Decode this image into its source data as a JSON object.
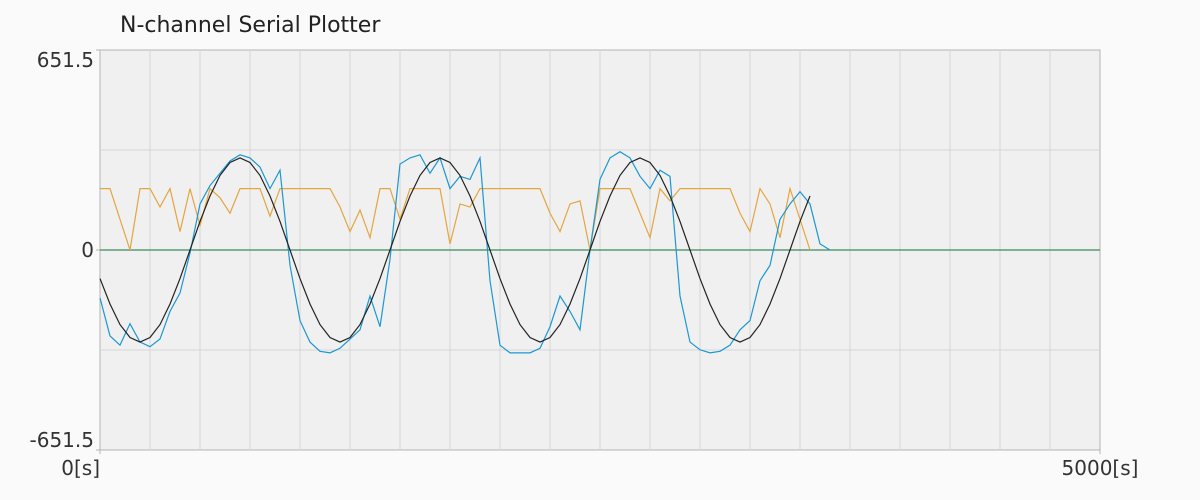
{
  "chart_data": {
    "type": "line",
    "title": "N-channel Serial Plotter",
    "xlim": [
      0,
      5000
    ],
    "ylim": [
      -651.5,
      651.5
    ],
    "xticks": [
      {
        "value": 0,
        "label": "0[s]"
      },
      {
        "value": 5000,
        "label": "5000[s]"
      }
    ],
    "yticks": [
      -651.5,
      0,
      651.5
    ],
    "xgrid": [
      250,
      500,
      750,
      1000,
      1250,
      1500,
      1750,
      2000,
      2250,
      2500,
      2750,
      3000,
      3250,
      3500,
      3750,
      4000,
      4250,
      4500,
      4750
    ],
    "ygrid": [
      -325.75,
      325.75
    ],
    "series": [
      {
        "color": "#3a8a5c",
        "x": [
          0,
          5000
        ],
        "values": [
          0,
          0
        ]
      },
      {
        "color": "#e4a540",
        "x": [
          0,
          50,
          100,
          150,
          200,
          250,
          300,
          350,
          400,
          450,
          500,
          550,
          600,
          650,
          700,
          750,
          800,
          850,
          900,
          950,
          1000,
          1050,
          1100,
          1150,
          1200,
          1250,
          1300,
          1350,
          1400,
          1450,
          1500,
          1550,
          1600,
          1650,
          1700,
          1750,
          1800,
          1850,
          1900,
          1950,
          2000,
          2050,
          2100,
          2150,
          2200,
          2250,
          2300,
          2350,
          2400,
          2450,
          2500,
          2550,
          2600,
          2650,
          2700,
          2750,
          2800,
          2850,
          2900,
          2950,
          3000,
          3050,
          3100,
          3150,
          3200,
          3250,
          3300,
          3350,
          3400,
          3450,
          3500,
          3550
        ],
        "values": [
          200,
          200,
          100,
          0,
          200,
          200,
          140,
          200,
          60,
          200,
          80,
          200,
          170,
          120,
          200,
          200,
          200,
          110,
          200,
          200,
          200,
          200,
          200,
          200,
          140,
          60,
          130,
          40,
          200,
          200,
          100,
          200,
          200,
          200,
          200,
          20,
          150,
          140,
          200,
          200,
          200,
          200,
          200,
          200,
          200,
          120,
          60,
          150,
          160,
          0,
          200,
          200,
          200,
          200,
          120,
          40,
          200,
          160,
          200,
          200,
          200,
          200,
          200,
          200,
          120,
          60,
          200,
          150,
          40,
          200,
          100,
          0
        ]
      },
      {
        "color": "#1a97d4",
        "x": [
          0,
          50,
          100,
          150,
          200,
          250,
          300,
          350,
          400,
          450,
          500,
          550,
          600,
          650,
          700,
          750,
          800,
          850,
          900,
          950,
          1000,
          1050,
          1100,
          1150,
          1200,
          1250,
          1300,
          1350,
          1400,
          1450,
          1500,
          1550,
          1600,
          1650,
          1700,
          1750,
          1800,
          1850,
          1900,
          1950,
          2000,
          2050,
          2100,
          2150,
          2200,
          2250,
          2300,
          2350,
          2400,
          2450,
          2500,
          2550,
          2600,
          2650,
          2700,
          2750,
          2800,
          2850,
          2900,
          2950,
          3000,
          3050,
          3100,
          3150,
          3200,
          3250,
          3300,
          3350,
          3400,
          3450,
          3500,
          3550,
          3600,
          3650
        ],
        "values": [
          -156,
          -280,
          -310,
          -240,
          -300,
          -315,
          -290,
          -200,
          -140,
          -10,
          150,
          210,
          250,
          290,
          310,
          300,
          270,
          200,
          260,
          -50,
          -230,
          -300,
          -330,
          -335,
          -320,
          -290,
          -260,
          -150,
          -250,
          -30,
          280,
          300,
          310,
          250,
          300,
          200,
          240,
          230,
          300,
          -100,
          -310,
          -335,
          -335,
          -335,
          -320,
          -250,
          -150,
          -200,
          -260,
          0,
          230,
          300,
          320,
          300,
          240,
          200,
          260,
          240,
          -150,
          -300,
          -325,
          -335,
          -330,
          -310,
          -260,
          -230,
          -100,
          -50,
          100,
          150,
          190,
          150,
          20,
          0
        ]
      },
      {
        "color": "#222222",
        "x": [
          0,
          50,
          100,
          150,
          200,
          250,
          300,
          350,
          400,
          450,
          500,
          550,
          600,
          650,
          700,
          750,
          800,
          850,
          900,
          950,
          1000,
          1050,
          1100,
          1150,
          1200,
          1250,
          1300,
          1350,
          1400,
          1450,
          1500,
          1550,
          1600,
          1650,
          1700,
          1750,
          1800,
          1850,
          1900,
          1950,
          2000,
          2050,
          2100,
          2150,
          2200,
          2250,
          2300,
          2350,
          2400,
          2450,
          2500,
          2550,
          2600,
          2650,
          2700,
          2750,
          2800,
          2850,
          2900,
          2950,
          3000,
          3050,
          3100,
          3150,
          3200,
          3250,
          3300,
          3350,
          3400,
          3450,
          3500,
          3550
        ],
        "values": [
          -93,
          -176,
          -243,
          -285,
          -300,
          -285,
          -243,
          -176,
          -93,
          0,
          93,
          176,
          243,
          285,
          300,
          285,
          243,
          176,
          93,
          0,
          -93,
          -176,
          -243,
          -285,
          -300,
          -285,
          -243,
          -176,
          -93,
          0,
          93,
          176,
          243,
          285,
          300,
          285,
          243,
          176,
          93,
          0,
          -93,
          -176,
          -243,
          -285,
          -300,
          -285,
          -243,
          -176,
          -93,
          0,
          93,
          176,
          243,
          285,
          300,
          285,
          243,
          176,
          93,
          0,
          -93,
          -176,
          -243,
          -285,
          -300,
          -285,
          -243,
          -176,
          -93,
          0,
          93,
          176
        ]
      }
    ]
  }
}
